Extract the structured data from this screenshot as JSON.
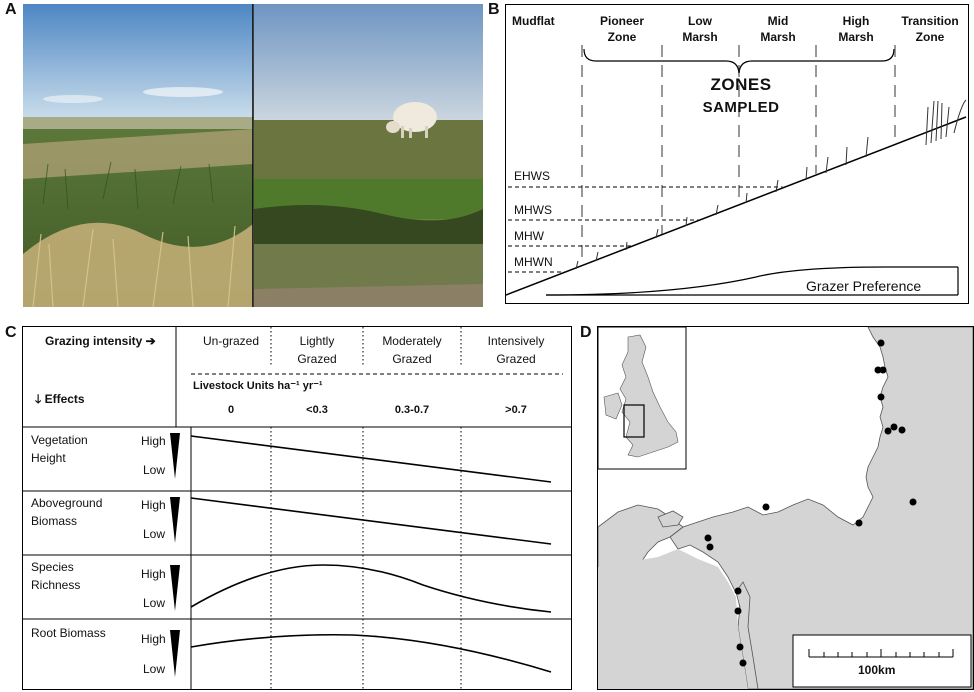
{
  "panel_labels": {
    "a": "A",
    "b": "B",
    "c": "C",
    "d": "D"
  },
  "panelB": {
    "zones": [
      "Mudflat",
      "Pioneer Zone",
      "Low Marsh",
      "Mid Marsh",
      "High Marsh",
      "Transition Zone"
    ],
    "zones_sampled_line1": "ZONES",
    "zones_sampled_line2": "SAMPLED",
    "tide_levels": [
      "EHWS",
      "MHWS",
      "MHW",
      "MHWN"
    ],
    "grazer_preference": "Grazer Preference"
  },
  "panelC": {
    "grazing_intensity": "Grazing intensity ➔",
    "effects": "🡓 Effects",
    "columns": [
      {
        "line1": "Un-grazed",
        "line2": ""
      },
      {
        "line1": "Lightly",
        "line2": "Grazed"
      },
      {
        "line1": "Moderately",
        "line2": "Grazed"
      },
      {
        "line1": "Intensively",
        "line2": "Grazed"
      }
    ],
    "livestock_units": "Livestock Units ha⁻¹ yr⁻¹",
    "units_values": [
      "0",
      "<0.3",
      "0.3-0.7",
      ">0.7"
    ],
    "rows": [
      {
        "line1": "Vegetation",
        "line2": "Height",
        "high": "High",
        "low": "Low"
      },
      {
        "line1": "Aboveground",
        "line2": "Biomass",
        "high": "High",
        "low": "Low"
      },
      {
        "line1": "Species",
        "line2": "Richness",
        "high": "High",
        "low": "Low"
      },
      {
        "line1": "Root Biomass",
        "line2": "",
        "high": "High",
        "low": "Low"
      }
    ]
  },
  "panelD": {
    "scale_label": "100km"
  }
}
